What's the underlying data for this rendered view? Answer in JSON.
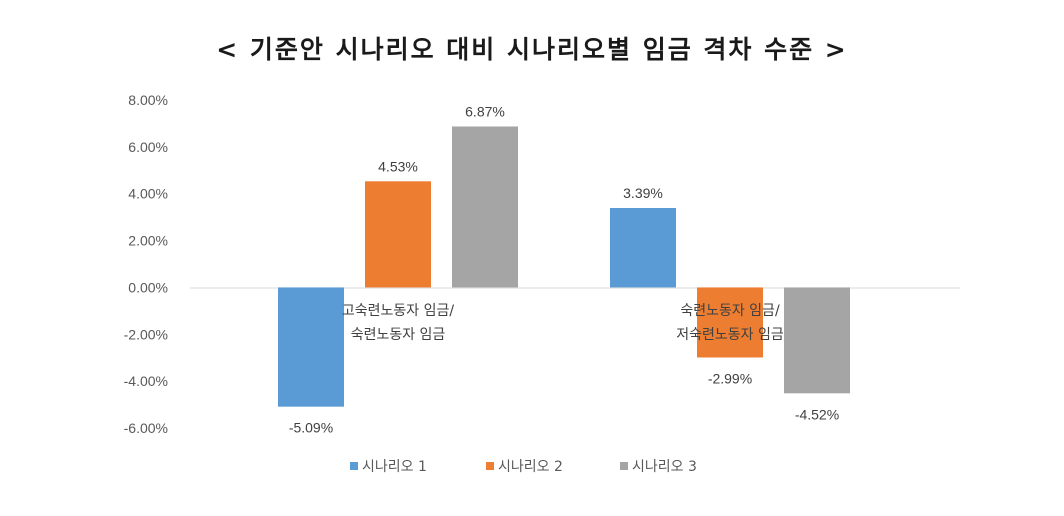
{
  "chart_data": {
    "type": "bar",
    "title": "< 기준안 시나리오 대비 시나리오별 임금 격차 수준 >",
    "categories": [
      [
        "고숙련노동자 임금/",
        "숙련노동자 임금"
      ],
      [
        "숙련노동자 임금/",
        "저숙련노동자 임금"
      ]
    ],
    "series": [
      {
        "name": "시나리오 1",
        "color": "#5b9bd5",
        "values": [
          -5.09,
          3.39
        ],
        "labels": [
          "-5.09%",
          "3.39%"
        ]
      },
      {
        "name": "시나리오 2",
        "color": "#ed7d31",
        "values": [
          4.53,
          -2.99
        ],
        "labels": [
          "4.53%",
          "-2.99%"
        ]
      },
      {
        "name": "시나리오 3",
        "color": "#a5a5a5",
        "values": [
          6.87,
          -4.52
        ],
        "labels": [
          "6.87%",
          "-4.52%"
        ]
      }
    ],
    "yticks": [
      "8.00%",
      "6.00%",
      "4.00%",
      "2.00%",
      "0.00%",
      "-2.00%",
      "-4.00%",
      "-6.00%"
    ],
    "ylim": [
      -6,
      8
    ],
    "grid": false,
    "legend_position": "bottom"
  }
}
